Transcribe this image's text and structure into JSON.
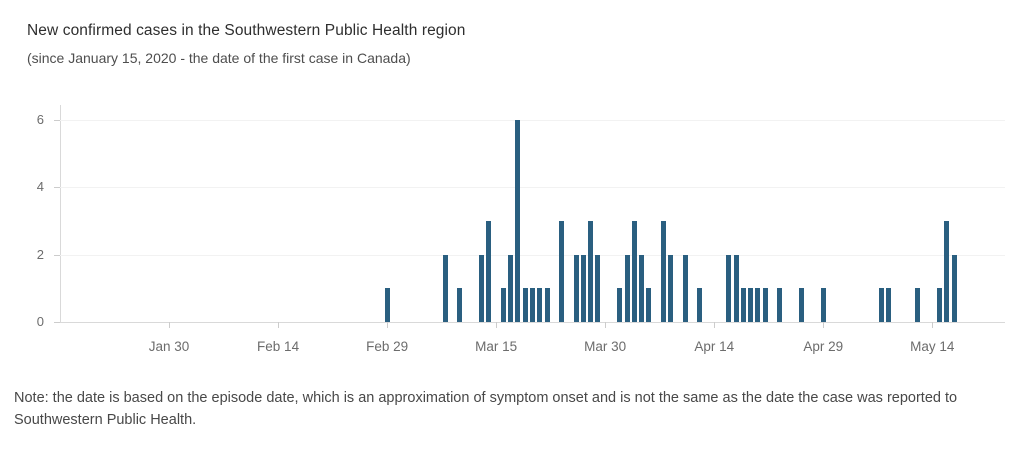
{
  "header": {
    "title": "New confirmed cases in the Southwestern Public Health region",
    "subtitle": "(since January 15, 2020 -  the date of the first case in Canada)"
  },
  "note": "Note: the date is based on the episode date, which is an approximation of symptom onset and is not the same as the date the case was reported to Southwestern Public Health.",
  "chart_data": {
    "type": "bar",
    "title": "New confirmed cases in the Southwestern Public Health region",
    "subtitle": "(since January 15, 2020 -  the date of the first case in Canada)",
    "xlabel": "",
    "ylabel": "",
    "ylim": [
      0,
      6
    ],
    "yticks": [
      0,
      2,
      4,
      6
    ],
    "xticks": [
      "Jan 30",
      "Feb 14",
      "Feb 29",
      "Mar 15",
      "Mar 30",
      "Apr 14",
      "Apr 29",
      "May 14"
    ],
    "x_domain": [
      "Jan 15",
      "May 24"
    ],
    "grid": "faint-horizontal",
    "legend": "none",
    "bar_color": "#2a5f80",
    "axis_color": "#d9d9d9",
    "tick_text_color": "#6c6c6c",
    "bars": [
      {
        "date": "Feb 29",
        "value": 1
      },
      {
        "date": "Mar 8",
        "value": 2
      },
      {
        "date": "Mar 10",
        "value": 1
      },
      {
        "date": "Mar 13",
        "value": 2
      },
      {
        "date": "Mar 14",
        "value": 3
      },
      {
        "date": "Mar 16",
        "value": 1
      },
      {
        "date": "Mar 17",
        "value": 2
      },
      {
        "date": "Mar 18",
        "value": 6
      },
      {
        "date": "Mar 19",
        "value": 1
      },
      {
        "date": "Mar 20",
        "value": 1
      },
      {
        "date": "Mar 21",
        "value": 1
      },
      {
        "date": "Mar 22",
        "value": 1
      },
      {
        "date": "Mar 24",
        "value": 3
      },
      {
        "date": "Mar 26",
        "value": 2
      },
      {
        "date": "Mar 27",
        "value": 2
      },
      {
        "date": "Mar 28",
        "value": 3
      },
      {
        "date": "Mar 29",
        "value": 2
      },
      {
        "date": "Apr 1",
        "value": 1
      },
      {
        "date": "Apr 2",
        "value": 2
      },
      {
        "date": "Apr 3",
        "value": 3
      },
      {
        "date": "Apr 4",
        "value": 2
      },
      {
        "date": "Apr 5",
        "value": 1
      },
      {
        "date": "Apr 7",
        "value": 3
      },
      {
        "date": "Apr 8",
        "value": 2
      },
      {
        "date": "Apr 10",
        "value": 2
      },
      {
        "date": "Apr 12",
        "value": 1
      },
      {
        "date": "Apr 16",
        "value": 2
      },
      {
        "date": "Apr 17",
        "value": 2
      },
      {
        "date": "Apr 18",
        "value": 1
      },
      {
        "date": "Apr 19",
        "value": 1
      },
      {
        "date": "Apr 20",
        "value": 1
      },
      {
        "date": "Apr 21",
        "value": 1
      },
      {
        "date": "Apr 23",
        "value": 1
      },
      {
        "date": "Apr 26",
        "value": 1
      },
      {
        "date": "Apr 29",
        "value": 1
      },
      {
        "date": "May 7",
        "value": 1
      },
      {
        "date": "May 8",
        "value": 1
      },
      {
        "date": "May 12",
        "value": 1
      },
      {
        "date": "May 15",
        "value": 1
      },
      {
        "date": "May 16",
        "value": 3
      },
      {
        "date": "May 17",
        "value": 2
      }
    ]
  }
}
